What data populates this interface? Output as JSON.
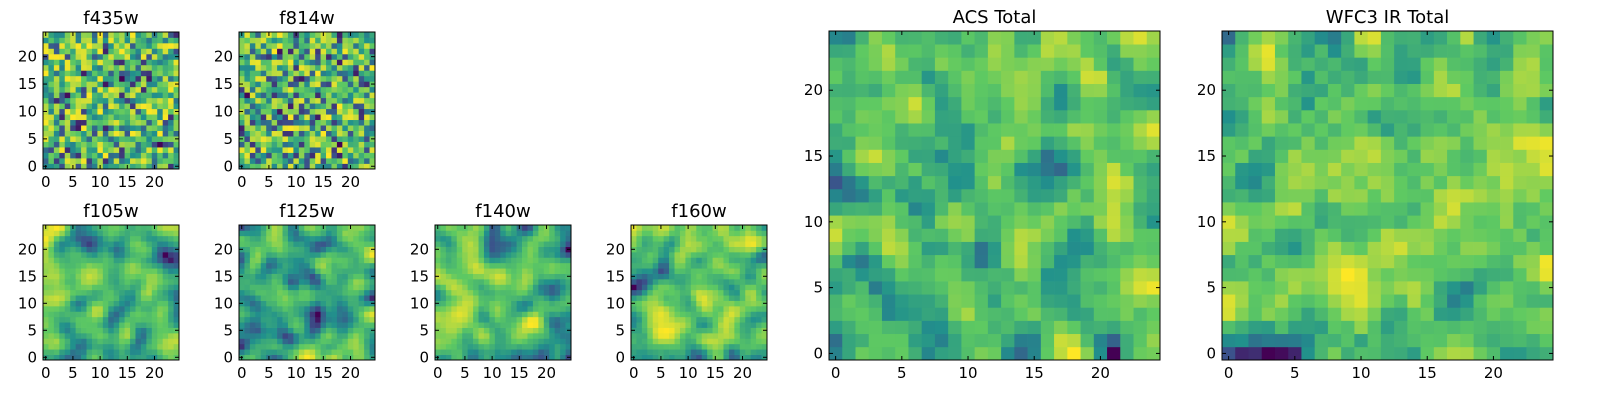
{
  "figure": {
    "colormap": "viridis",
    "colormap_stops": [
      "#440154",
      "#3b528b",
      "#21918c",
      "#5ec962",
      "#fde725"
    ],
    "background": "#ffffff"
  },
  "chart_data": [
    {
      "id": "f435w",
      "type": "heatmap",
      "title": "f435w",
      "grid": [
        25,
        25
      ],
      "xlim": [
        0,
        25
      ],
      "ylim": [
        0,
        25
      ],
      "xticks": [
        0,
        5,
        10,
        15,
        20
      ],
      "yticks": [
        0,
        5,
        10,
        15,
        20
      ],
      "xtick_labels": [
        "0",
        "5",
        "10",
        "15",
        "20"
      ],
      "ytick_labels": [
        "0",
        "5",
        "10",
        "15",
        "20"
      ],
      "value_range": [
        0,
        1
      ],
      "seed": 11,
      "smooth": 0
    },
    {
      "id": "f814w",
      "type": "heatmap",
      "title": "f814w",
      "grid": [
        25,
        25
      ],
      "xlim": [
        0,
        25
      ],
      "ylim": [
        0,
        25
      ],
      "xticks": [
        0,
        5,
        10,
        15,
        20
      ],
      "yticks": [
        0,
        5,
        10,
        15,
        20
      ],
      "xtick_labels": [
        "0",
        "5",
        "10",
        "15",
        "20"
      ],
      "ytick_labels": [
        "0",
        "5",
        "10",
        "15",
        "20"
      ],
      "value_range": [
        0,
        1
      ],
      "seed": 23,
      "smooth": 0
    },
    {
      "id": "f105w",
      "type": "heatmap",
      "title": "f105w",
      "grid": [
        25,
        25
      ],
      "xlim": [
        0,
        25
      ],
      "ylim": [
        0,
        25
      ],
      "xticks": [
        0,
        5,
        10,
        15,
        20
      ],
      "yticks": [
        0,
        5,
        10,
        15,
        20
      ],
      "xtick_labels": [
        "0",
        "5",
        "10",
        "15",
        "20"
      ],
      "ytick_labels": [
        "0",
        "5",
        "10",
        "15",
        "20"
      ],
      "value_range": [
        0,
        1
      ],
      "seed": 37,
      "smooth": 2
    },
    {
      "id": "f125w",
      "type": "heatmap",
      "title": "f125w",
      "grid": [
        25,
        25
      ],
      "xlim": [
        0,
        25
      ],
      "ylim": [
        0,
        25
      ],
      "xticks": [
        0,
        5,
        10,
        15,
        20
      ],
      "yticks": [
        0,
        5,
        10,
        15,
        20
      ],
      "xtick_labels": [
        "0",
        "5",
        "10",
        "15",
        "20"
      ],
      "ytick_labels": [
        "0",
        "5",
        "10",
        "15",
        "20"
      ],
      "value_range": [
        0,
        1
      ],
      "seed": 41,
      "smooth": 2
    },
    {
      "id": "f140w",
      "type": "heatmap",
      "title": "f140w",
      "grid": [
        25,
        25
      ],
      "xlim": [
        0,
        25
      ],
      "ylim": [
        0,
        25
      ],
      "xticks": [
        0,
        5,
        10,
        15,
        20
      ],
      "yticks": [
        0,
        5,
        10,
        15,
        20
      ],
      "xtick_labels": [
        "0",
        "5",
        "10",
        "15",
        "20"
      ],
      "ytick_labels": [
        "0",
        "5",
        "10",
        "15",
        "20"
      ],
      "value_range": [
        0,
        1
      ],
      "seed": 53,
      "smooth": 2
    },
    {
      "id": "f160w",
      "type": "heatmap",
      "title": "f160w",
      "grid": [
        25,
        25
      ],
      "xlim": [
        0,
        25
      ],
      "ylim": [
        0,
        25
      ],
      "xticks": [
        0,
        5,
        10,
        15,
        20
      ],
      "yticks": [
        0,
        5,
        10,
        15,
        20
      ],
      "xtick_labels": [
        "0",
        "5",
        "10",
        "15",
        "20"
      ],
      "ytick_labels": [
        "0",
        "5",
        "10",
        "15",
        "20"
      ],
      "value_range": [
        0,
        1
      ],
      "seed": 67,
      "smooth": 2
    },
    {
      "id": "acs-total",
      "type": "heatmap",
      "title": "ACS Total",
      "grid": [
        25,
        25
      ],
      "xlim": [
        0,
        25
      ],
      "ylim": [
        0,
        25
      ],
      "xticks": [
        0,
        5,
        10,
        15,
        20
      ],
      "yticks": [
        0,
        5,
        10,
        15,
        20
      ],
      "xtick_labels": [
        "0",
        "5",
        "10",
        "15",
        "20"
      ],
      "ytick_labels": [
        "0",
        "5",
        "10",
        "15",
        "20"
      ],
      "value_range": [
        0,
        1
      ],
      "seed": 79,
      "smooth": 1
    },
    {
      "id": "wfc3-ir-total",
      "type": "heatmap",
      "title": "WFC3 IR Total",
      "grid": [
        25,
        25
      ],
      "xlim": [
        0,
        25
      ],
      "ylim": [
        0,
        25
      ],
      "xticks": [
        0,
        5,
        10,
        15,
        20
      ],
      "yticks": [
        0,
        5,
        10,
        15,
        20
      ],
      "xtick_labels": [
        "0",
        "5",
        "10",
        "15",
        "20"
      ],
      "ytick_labels": [
        "0",
        "5",
        "10",
        "15",
        "20"
      ],
      "value_range": [
        0,
        1
      ],
      "seed": 97,
      "smooth": 1
    }
  ]
}
